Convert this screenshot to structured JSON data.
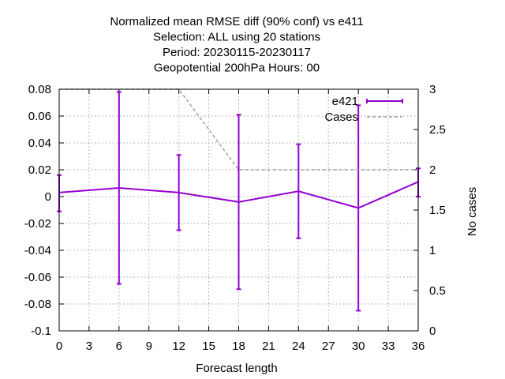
{
  "chart_data": {
    "type": "line",
    "title_lines": [
      "Normalized mean RMSE diff (90% conf) vs e411",
      "Selection: ALL using    20 stations",
      "Period: 20230115-20230117",
      "Geopotential 200hPa   Hours:  00"
    ],
    "xlabel": "Forecast length",
    "ylabel": "",
    "y2label": "No cases",
    "xlim": [
      0,
      36
    ],
    "ylim": [
      -0.1,
      0.08
    ],
    "y2lim": [
      0,
      3
    ],
    "xticks": [
      "0",
      "3",
      "6",
      "9",
      "12",
      "15",
      "18",
      "21",
      "24",
      "27",
      "30",
      "33",
      "36"
    ],
    "yticks": [
      "0.08",
      "0.06",
      "0.04",
      "0.02",
      "0",
      "-0.02",
      "-0.04",
      "-0.06",
      "-0.08",
      "-0.1"
    ],
    "y2ticks": [
      "3",
      "2.5",
      "2",
      "1.5",
      "1",
      "0.5",
      "0"
    ],
    "grid": true,
    "legend_position": "top-right",
    "series": [
      {
        "name": "e421",
        "color": "#9400d3",
        "axis": "y",
        "style": "line-errorbars",
        "x": [
          0,
          6,
          12,
          18,
          24,
          30,
          36
        ],
        "y": [
          0.003,
          0.0065,
          0.003,
          -0.004,
          0.004,
          -0.0085,
          0.011
        ],
        "err_low": [
          -0.011,
          -0.065,
          -0.025,
          -0.069,
          -0.031,
          -0.085,
          0.0
        ],
        "err_high": [
          0.016,
          0.078,
          0.031,
          0.061,
          0.039,
          0.068,
          0.021
        ]
      },
      {
        "name": "Cases",
        "color": "#a0a0a0",
        "axis": "y2",
        "style": "dashed",
        "x": [
          0,
          6,
          12,
          18,
          24,
          30,
          36
        ],
        "y": [
          3,
          3,
          3,
          2,
          2,
          2,
          2
        ]
      }
    ]
  }
}
